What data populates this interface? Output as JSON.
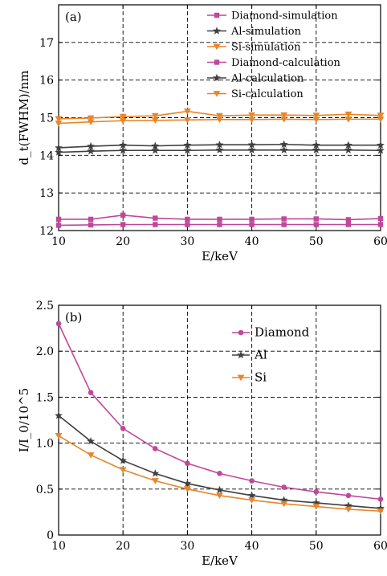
{
  "chart_data": [
    {
      "type": "line",
      "panel_label": "(a)",
      "xlabel": "E/keV",
      "ylabel": "d_t(FWHM)/nm",
      "xlim": [
        10,
        60
      ],
      "ylim": [
        12,
        18
      ],
      "xticks": [
        "10",
        "20",
        "30",
        "40",
        "50",
        "60"
      ],
      "yticks": [
        "12",
        "13",
        "14",
        "15",
        "16",
        "17"
      ],
      "grid": true,
      "legend_position": "top-right",
      "x": [
        10,
        15,
        20,
        25,
        30,
        35,
        40,
        45,
        50,
        55,
        60
      ],
      "series": [
        {
          "name": "Diamond-simulation",
          "color": "#c0479b",
          "marker": "square",
          "values": [
            12.3,
            12.3,
            12.41,
            12.33,
            12.3,
            12.3,
            12.3,
            12.31,
            12.31,
            12.29,
            12.32
          ]
        },
        {
          "name": "Al-simulation",
          "color": "#404040",
          "marker": "star",
          "values": [
            14.2,
            14.24,
            14.27,
            14.25,
            14.27,
            14.28,
            14.28,
            14.29,
            14.27,
            14.27,
            14.27
          ]
        },
        {
          "name": "Si-simulation",
          "color": "#e8852a",
          "marker": "triangle-down",
          "values": [
            14.97,
            14.99,
            15.03,
            15.05,
            15.17,
            15.05,
            15.07,
            15.07,
            15.06,
            15.09,
            15.06
          ]
        },
        {
          "name": "Diamond-calculation",
          "color": "#c0479b",
          "marker": "square",
          "values": [
            12.14,
            12.15,
            12.16,
            12.16,
            12.16,
            12.16,
            12.16,
            12.16,
            12.16,
            12.16,
            12.16
          ]
        },
        {
          "name": "Al-calculation",
          "color": "#404040",
          "marker": "star",
          "values": [
            14.08,
            14.11,
            14.13,
            14.13,
            14.13,
            14.14,
            14.14,
            14.14,
            14.14,
            14.14,
            14.13
          ]
        },
        {
          "name": "Si-calculation",
          "color": "#e8852a",
          "marker": "triangle-down",
          "values": [
            14.85,
            14.89,
            14.92,
            14.93,
            14.94,
            14.95,
            14.95,
            14.96,
            14.95,
            14.96,
            14.96
          ]
        }
      ]
    },
    {
      "type": "line",
      "panel_label": "(b)",
      "xlabel": "E/keV",
      "ylabel": "I/I_0/10^5",
      "xlim": [
        10,
        60
      ],
      "ylim": [
        0,
        2.5
      ],
      "xticks": [
        "10",
        "20",
        "30",
        "40",
        "50",
        "60"
      ],
      "yticks": [
        "0",
        "0.5",
        "1.0",
        "1.5",
        "2.0",
        "2.5"
      ],
      "grid": true,
      "legend_position": "top-right",
      "x": [
        10,
        15,
        20,
        25,
        30,
        35,
        40,
        45,
        50,
        55,
        60
      ],
      "series": [
        {
          "name": "Diamond",
          "color": "#c0479b",
          "marker": "circle",
          "values": [
            2.3,
            1.55,
            1.16,
            0.94,
            0.78,
            0.67,
            0.59,
            0.52,
            0.47,
            0.43,
            0.39
          ]
        },
        {
          "name": "Al",
          "color": "#404040",
          "marker": "star",
          "values": [
            1.3,
            1.02,
            0.81,
            0.67,
            0.56,
            0.49,
            0.43,
            0.38,
            0.35,
            0.32,
            0.29
          ]
        },
        {
          "name": "Si",
          "color": "#e8852a",
          "marker": "triangle-down",
          "values": [
            1.08,
            0.87,
            0.71,
            0.59,
            0.5,
            0.43,
            0.38,
            0.34,
            0.31,
            0.28,
            0.26
          ]
        }
      ]
    }
  ]
}
